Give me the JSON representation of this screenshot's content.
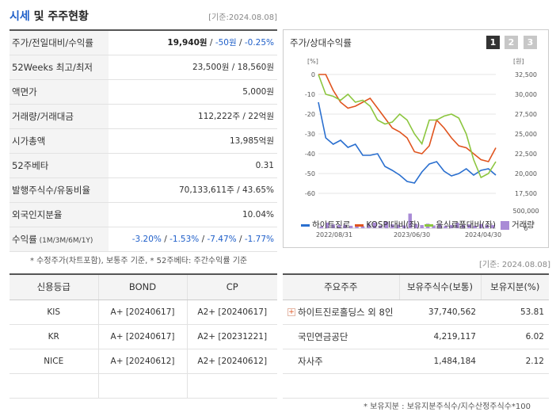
{
  "header": {
    "title_1": "시세",
    "title_2": " 및 주주현황",
    "date": "[기준:2024.08.08]"
  },
  "price_table": [
    {
      "label": "주가/전일대비/수익률",
      "value_parts": [
        {
          "text": "19,940원",
          "cls": "b"
        },
        {
          "text": " / ",
          "cls": ""
        },
        {
          "text": "-50원",
          "cls": "blue"
        },
        {
          "text": " / ",
          "cls": ""
        },
        {
          "text": "-0.25%",
          "cls": "blue"
        }
      ]
    },
    {
      "label": "52Weeks 최고/최저",
      "value": "23,500원 / 18,560원"
    },
    {
      "label": "액면가",
      "value": "5,000원"
    },
    {
      "label": "거래량/거래대금",
      "value": "112,222주 / 22억원"
    },
    {
      "label": "시가총액",
      "value": "13,985억원"
    },
    {
      "label": "52주베타",
      "value": "0.31"
    },
    {
      "label": "발행주식수/유동비율",
      "value": "70,133,611주 / 43.65%"
    },
    {
      "label": "외국인지분율",
      "value": "10.04%"
    },
    {
      "label": "수익률",
      "label_small": " (1M/3M/6M/1Y)",
      "value_parts": [
        {
          "text": "-3.20%",
          "cls": "blue"
        },
        {
          "text": " / ",
          "cls": ""
        },
        {
          "text": "-1.53%",
          "cls": "blue"
        },
        {
          "text": " / ",
          "cls": ""
        },
        {
          "text": "-7.47%",
          "cls": "blue"
        },
        {
          "text": " / ",
          "cls": ""
        },
        {
          "text": "-1.77%",
          "cls": "blue"
        }
      ]
    }
  ],
  "note1": "* 수정주가(차트포함), 보통주 기준, * 52주베타: 주간수익률 기준",
  "chart_panel": {
    "title": "주가/상대수익률",
    "period_buttons": [
      "1",
      "2",
      "3"
    ],
    "legend": [
      {
        "label": "하이트진로",
        "color": "#2a6fcf",
        "kind": "line"
      },
      {
        "label": "KOSPI대비(좌)",
        "color": "#e0541f",
        "kind": "line"
      },
      {
        "label": "음식료품대비(좌)",
        "color": "#8cc63f",
        "kind": "line"
      },
      {
        "label": "거래량",
        "color": "#a98bd6",
        "kind": "box"
      }
    ]
  },
  "chart_data": {
    "type": "line",
    "left_unit": "[%]",
    "right_unit": "[원]",
    "left_ticks": [
      "0",
      "-10",
      "-20",
      "-30",
      "-40",
      "-50",
      "-60"
    ],
    "right_ticks": [
      "32,500",
      "30,000",
      "27,500",
      "25,000",
      "22,500",
      "20,000",
      "17,500"
    ],
    "volume_ticks": [
      "500,000",
      "0"
    ],
    "x_ticks": [
      "2022/08/31",
      "2023/06/30",
      "2024/04/30"
    ],
    "left_range": [
      -60,
      0
    ],
    "right_range": [
      17500,
      32500
    ],
    "volume_range": [
      0,
      500000
    ],
    "series": [
      {
        "name": "하이트진로",
        "color": "#2a6fcf",
        "axis": "right",
        "values": [
          29000,
          24500,
          23700,
          24200,
          23300,
          23700,
          22300,
          22300,
          22500,
          20900,
          20400,
          19800,
          19000,
          18800,
          20200,
          21200,
          21500,
          20300,
          19700,
          20000,
          20600,
          19800,
          20400,
          20600,
          19800
        ]
      },
      {
        "name": "KOSPI대비(좌)",
        "color": "#e0541f",
        "axis": "left",
        "values": [
          0,
          0,
          -8,
          -14,
          -17,
          -16,
          -14,
          -12,
          -17,
          -22,
          -27,
          -29,
          -32,
          -39,
          -40,
          -36,
          -23,
          -27,
          -32,
          -36,
          -37,
          -40,
          -43,
          -44,
          -37
        ]
      },
      {
        "name": "음식료품대비(좌)",
        "color": "#8cc63f",
        "axis": "left",
        "values": [
          0,
          -10,
          -11,
          -13,
          -10,
          -14,
          -13,
          -16,
          -23,
          -25,
          -24,
          -20,
          -23,
          -30,
          -35,
          -23,
          -23,
          -21,
          -20,
          -22,
          -30,
          -43,
          -52,
          -50,
          -44
        ]
      },
      {
        "name": "거래량",
        "color": "#a98bd6",
        "axis": "volume",
        "kind": "bar",
        "values": [
          50000,
          160000,
          110000,
          90000,
          100000,
          70000,
          90000,
          60000,
          130000,
          160000,
          80000,
          190000,
          110000,
          100000,
          80000,
          420000,
          120000,
          90000,
          130000,
          80000,
          120000,
          60000,
          90000,
          160000,
          90000,
          110000,
          70000,
          120000,
          90000,
          90000
        ]
      }
    ]
  },
  "date2": "[기준: 2024.08.08]",
  "credit_table": {
    "headers": [
      "신용등급",
      "BOND",
      "CP"
    ],
    "rows": [
      [
        "KIS",
        "A+ [20240617]",
        "A2+ [20240617]"
      ],
      [
        "KR",
        "A+ [20240617]",
        "A2+ [20231221]"
      ],
      [
        "NICE",
        "A+ [20240612]",
        "A2+ [20240612]"
      ]
    ]
  },
  "shareholder_table": {
    "headers": [
      "주요주주",
      "보유주식수(보통)",
      "보유지분(%)"
    ],
    "rows": [
      {
        "name": "하이트진로홀딩스 외 8인",
        "expand": "+",
        "shares": "37,740,562",
        "pct": "53.81"
      },
      {
        "name": "국민연금공단",
        "shares": "4,219,117",
        "pct": "6.02"
      },
      {
        "name": "자사주",
        "shares": "1,484,184",
        "pct": "2.12"
      }
    ]
  },
  "note2": "* 보유지분 : 보유지분주식수/지수산정주식수*100"
}
